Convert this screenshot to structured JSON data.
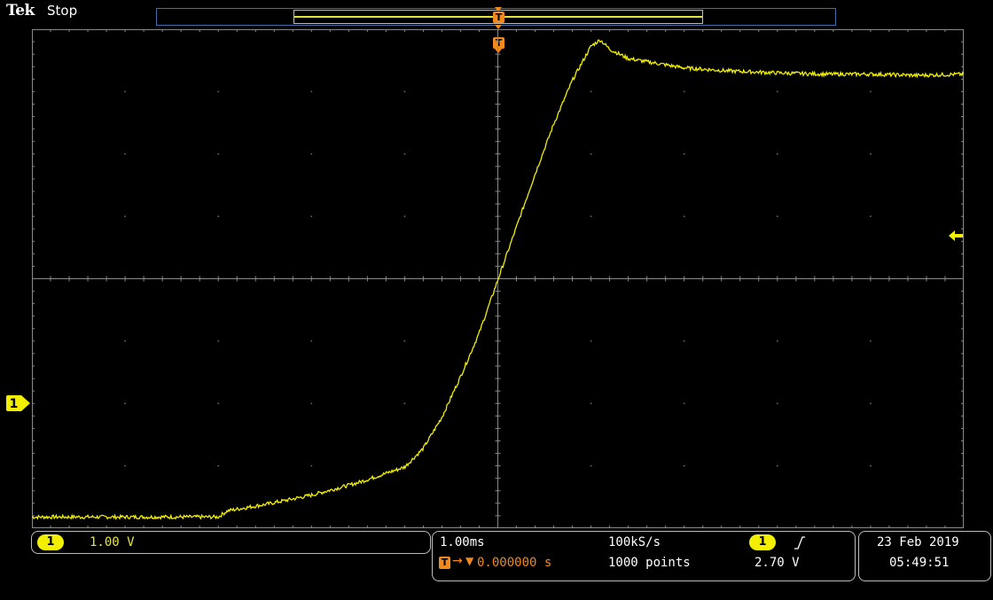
{
  "header": {
    "brand": "Tek",
    "run_state": "Stop"
  },
  "markers": {
    "trigger_letter": "T",
    "channel_number": "1"
  },
  "vertical": {
    "channel": "1",
    "scale": "1.00 V"
  },
  "horizontal": {
    "time_per_div": "1.00ms",
    "sample_rate": "100kS/s",
    "record_length": "1000 points",
    "trigger_position": "0.000000 s"
  },
  "trigger": {
    "source": "1",
    "level": "2.70 V",
    "slope": "rising"
  },
  "datetime": {
    "date": "23 Feb  2019",
    "time": "05:49:51"
  },
  "colors": {
    "trace": "#f2ef00",
    "trigger": "#f08a1e",
    "graticule": "#8a8a8a",
    "record_view_border": "#3f6fa8"
  },
  "chart_data": {
    "type": "line",
    "title": "",
    "xlabel": "",
    "ylabel": "",
    "x_divisions": 10,
    "y_divisions": 8,
    "x_units": "ms (1.00 ms/div, trigger at 0)",
    "y_units": "V (1.00 V/div, ground at channel marker)",
    "xlim": [
      -5,
      5
    ],
    "ylim": [
      -0.18,
      7.82
    ],
    "grid": true,
    "series": [
      {
        "x": [
          -5.0,
          -4.0,
          -3.0,
          -2.9,
          -2.5,
          -2.0,
          -1.5,
          -1.2,
          -1.0,
          -0.8,
          -0.6,
          -0.4,
          -0.2,
          0.0,
          0.2,
          0.4,
          0.6,
          0.8,
          1.0,
          1.1,
          1.2,
          1.4,
          1.6,
          2.0,
          2.5,
          3.0,
          3.5,
          4.0,
          4.5,
          5.0
        ],
        "y": [
          0.0,
          0.0,
          0.0,
          0.1,
          0.2,
          0.35,
          0.55,
          0.7,
          0.8,
          1.1,
          1.6,
          2.25,
          2.95,
          3.8,
          4.65,
          5.5,
          6.3,
          7.0,
          7.55,
          7.65,
          7.5,
          7.35,
          7.3,
          7.2,
          7.15,
          7.12,
          7.1,
          7.1,
          7.08,
          7.1
        ]
      }
    ]
  }
}
